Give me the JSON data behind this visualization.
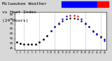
{
  "title_line1": "Milwaukee Weather",
  "title_line2": "vs Heat Index",
  "title_line3": "(24 Hours)",
  "hours": [
    1,
    2,
    3,
    4,
    5,
    6,
    7,
    8,
    9,
    10,
    11,
    12,
    13,
    14,
    15,
    16,
    17,
    18,
    19,
    20,
    21,
    22,
    23,
    24
  ],
  "temp": [
    51,
    50,
    49,
    49,
    49,
    49,
    51,
    54,
    58,
    63,
    67,
    70,
    73,
    75,
    76,
    76,
    75,
    73,
    70,
    67,
    63,
    60,
    57,
    54
  ],
  "heat_index": [
    51,
    50,
    49,
    49,
    49,
    49,
    51,
    54,
    58,
    63,
    67,
    71,
    75,
    78,
    79,
    79,
    78,
    75,
    71,
    67,
    62,
    59,
    56,
    53
  ],
  "heat_index_colors": [
    "black",
    "black",
    "black",
    "black",
    "black",
    "black",
    "black",
    "black",
    "black",
    "blue",
    "blue",
    "blue",
    "blue",
    "blue",
    "red",
    "red",
    "red",
    "blue",
    "blue",
    "blue",
    "blue",
    "blue",
    "blue",
    "blue"
  ],
  "ylim": [
    43,
    82
  ],
  "yticks": [
    45,
    50,
    55,
    60,
    65,
    70,
    75,
    80
  ],
  "ytick_labels": [
    "45",
    "50",
    "55",
    "60",
    "65",
    "70",
    "75",
    "80"
  ],
  "grid_hours": [
    3,
    7,
    11,
    15,
    19,
    23
  ],
  "bg_color": "#d8d8d8",
  "plot_bg": "#ffffff",
  "temp_color": "#000000",
  "title_fontsize": 4.5,
  "xtick_labels": [
    "1",
    "2",
    "3",
    "4",
    "5",
    "6",
    "7",
    "8",
    "9",
    "10",
    "11",
    "12",
    "13",
    "14",
    "15",
    "16",
    "17",
    "18",
    "19",
    "20",
    "21",
    "22",
    "23",
    "24"
  ]
}
